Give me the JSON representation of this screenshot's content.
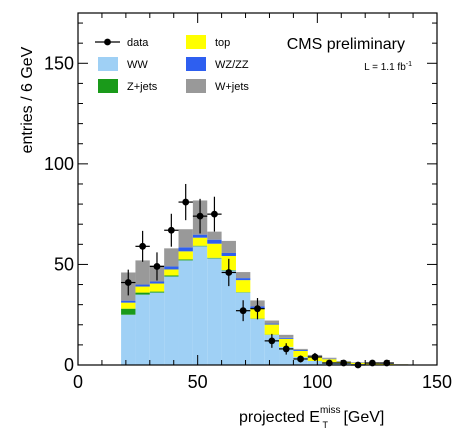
{
  "chart_data": {
    "type": "bar",
    "stacked": true,
    "histogram": true,
    "x_edges": [
      18,
      24,
      30,
      36,
      42,
      48,
      54,
      60,
      66,
      72,
      78,
      84,
      90,
      96,
      102,
      108,
      114,
      120,
      126,
      132,
      138,
      144,
      150
    ],
    "series": [
      {
        "name": "WW",
        "color": "#9fd0f5",
        "values": [
          25,
          35,
          36,
          44,
          52,
          59,
          53,
          47,
          36,
          23,
          15,
          9,
          4,
          2,
          1.4,
          0.8,
          0.5,
          0.3,
          0.2,
          0.1,
          0.1,
          0.1
        ]
      },
      {
        "name": "Z+jets",
        "color": "#1a9a1a",
        "values": [
          3,
          1,
          0.5,
          0.5,
          0.5,
          0.3,
          0.3,
          0.2,
          0.2,
          0.1,
          0.1,
          0,
          0,
          0,
          0,
          0,
          0,
          0,
          0,
          0,
          0,
          0
        ]
      },
      {
        "name": "top",
        "color": "#ffff00",
        "values": [
          3,
          3,
          4,
          3,
          4,
          4,
          7,
          7,
          6,
          5,
          5,
          4,
          3,
          2,
          1.5,
          0.8,
          0.6,
          0.4,
          0.3,
          0.2,
          0.1,
          0.1
        ]
      },
      {
        "name": "WZ/ZZ",
        "color": "#2e5ff0",
        "values": [
          1,
          1,
          1,
          1.5,
          2,
          1.5,
          2,
          1.5,
          1,
          1,
          0.5,
          0.5,
          0.5,
          0.3,
          0.2,
          0.1,
          0.1,
          0.1,
          0.1,
          0,
          0,
          0
        ]
      },
      {
        "name": "W+jets",
        "color": "#999999",
        "values": [
          14,
          12,
          8,
          9,
          9,
          17,
          4,
          6,
          3,
          3,
          1.5,
          1.5,
          0.5,
          0.7,
          0.5,
          0.3,
          0.2,
          0.2,
          0.1,
          0.1,
          0,
          0
        ]
      }
    ],
    "data": {
      "name": "data",
      "x": [
        21,
        27,
        33,
        39,
        45,
        51,
        57,
        63,
        69,
        75,
        81,
        87,
        93,
        99,
        105,
        111,
        117,
        123,
        129
      ],
      "y": [
        41,
        59,
        49,
        67,
        81,
        74,
        75,
        46,
        27,
        28,
        12,
        8,
        3,
        4,
        1,
        1,
        0,
        1,
        1
      ]
    },
    "xlim": [
      0,
      150
    ],
    "ylim": [
      0,
      175
    ],
    "xticks": [
      0,
      50,
      100,
      150
    ],
    "yticks": [
      0,
      50,
      100,
      150
    ],
    "ylabel": "entries / 6 GeV",
    "xlabel": {
      "prefix": "projected E",
      "sup": "miss",
      "sub": "T",
      "suffix": " [GeV]"
    },
    "title": "CMS preliminary",
    "lumi": {
      "text": "L = 1.1 fb",
      "sup": "-1"
    },
    "legend": [
      {
        "name": "data",
        "kind": "marker"
      },
      {
        "name": "top",
        "kind": "box",
        "color": "#ffff00"
      },
      {
        "name": "WW",
        "kind": "box",
        "color": "#9fd0f5"
      },
      {
        "name": "WZ/ZZ",
        "kind": "box",
        "color": "#2e5ff0"
      },
      {
        "name": "Z+jets",
        "kind": "box",
        "color": "#1a9a1a"
      },
      {
        "name": "W+jets",
        "kind": "box",
        "color": "#999999"
      }
    ],
    "legend_position": "top-left",
    "grid": false
  }
}
